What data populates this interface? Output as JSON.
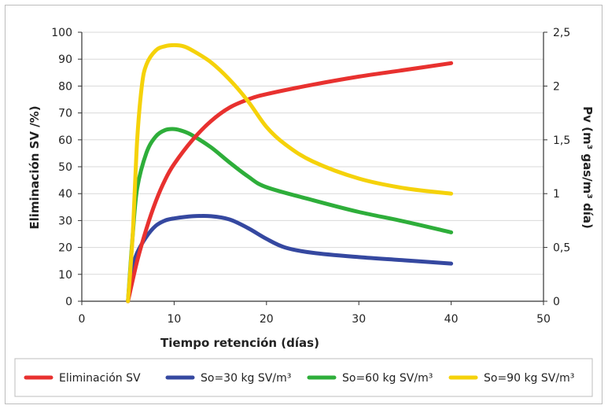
{
  "chart_data": {
    "type": "line",
    "xlabel": "Tiempo retención (días)",
    "ylabel_left": "Eliminación SV /%)",
    "ylabel_right": "Pv (m³ gas/m³ día)",
    "xlim": [
      0,
      50
    ],
    "x_ticks": [
      "0",
      "10",
      "20",
      "30",
      "40",
      "50"
    ],
    "ylim_left": [
      0,
      100
    ],
    "y_left_ticks": [
      "0",
      "10",
      "20",
      "30",
      "40",
      "50",
      "60",
      "70",
      "80",
      "90",
      "100"
    ],
    "ylim_right": [
      0,
      2.5
    ],
    "y_right_ticks": [
      "0",
      "0,5",
      "1",
      "1,5",
      "2",
      "2,5"
    ],
    "grid": "horizontal",
    "legend_position": "bottom",
    "series": [
      {
        "name": "Eliminación SV",
        "axis": "left",
        "color": "#e8312f",
        "points": [
          [
            5,
            0
          ],
          [
            6,
            15
          ],
          [
            7,
            27
          ],
          [
            8,
            37
          ],
          [
            9,
            45
          ],
          [
            10,
            51
          ],
          [
            12,
            60
          ],
          [
            14,
            67
          ],
          [
            16,
            72
          ],
          [
            18,
            75
          ],
          [
            20,
            77
          ],
          [
            25,
            80.5
          ],
          [
            30,
            83.5
          ],
          [
            35,
            86
          ],
          [
            40,
            88.5
          ]
        ]
      },
      {
        "name": "So=30 kg SV/m³",
        "axis": "right",
        "color": "#3548a0",
        "points": [
          [
            5,
            0
          ],
          [
            5.5,
            0.3
          ],
          [
            6,
            0.45
          ],
          [
            7,
            0.6
          ],
          [
            8,
            0.7
          ],
          [
            9,
            0.75
          ],
          [
            10,
            0.77
          ],
          [
            12,
            0.79
          ],
          [
            14,
            0.79
          ],
          [
            16,
            0.76
          ],
          [
            18,
            0.68
          ],
          [
            20,
            0.58
          ],
          [
            22,
            0.5
          ],
          [
            25,
            0.45
          ],
          [
            30,
            0.41
          ],
          [
            35,
            0.38
          ],
          [
            40,
            0.35
          ]
        ]
      },
      {
        "name": "So=60 kg SV/m³",
        "axis": "right",
        "color": "#2eae3a",
        "points": [
          [
            5,
            0
          ],
          [
            5.5,
            0.6
          ],
          [
            6,
            1.05
          ],
          [
            7,
            1.38
          ],
          [
            8,
            1.53
          ],
          [
            9,
            1.59
          ],
          [
            10,
            1.6
          ],
          [
            11,
            1.58
          ],
          [
            12,
            1.54
          ],
          [
            14,
            1.43
          ],
          [
            16,
            1.29
          ],
          [
            18,
            1.16
          ],
          [
            20,
            1.06
          ],
          [
            25,
            0.94
          ],
          [
            30,
            0.83
          ],
          [
            35,
            0.74
          ],
          [
            40,
            0.64
          ]
        ]
      },
      {
        "name": "So=90 kg SV/m³",
        "axis": "right",
        "color": "#f5d20a",
        "points": [
          [
            5,
            0
          ],
          [
            5.5,
            0.6
          ],
          [
            6,
            1.5
          ],
          [
            6.5,
            2.0
          ],
          [
            7,
            2.2
          ],
          [
            8,
            2.33
          ],
          [
            9,
            2.37
          ],
          [
            10,
            2.38
          ],
          [
            11,
            2.37
          ],
          [
            12,
            2.33
          ],
          [
            14,
            2.22
          ],
          [
            16,
            2.06
          ],
          [
            18,
            1.86
          ],
          [
            20,
            1.62
          ],
          [
            22,
            1.46
          ],
          [
            25,
            1.3
          ],
          [
            30,
            1.14
          ],
          [
            35,
            1.05
          ],
          [
            40,
            1.0
          ]
        ]
      }
    ]
  }
}
